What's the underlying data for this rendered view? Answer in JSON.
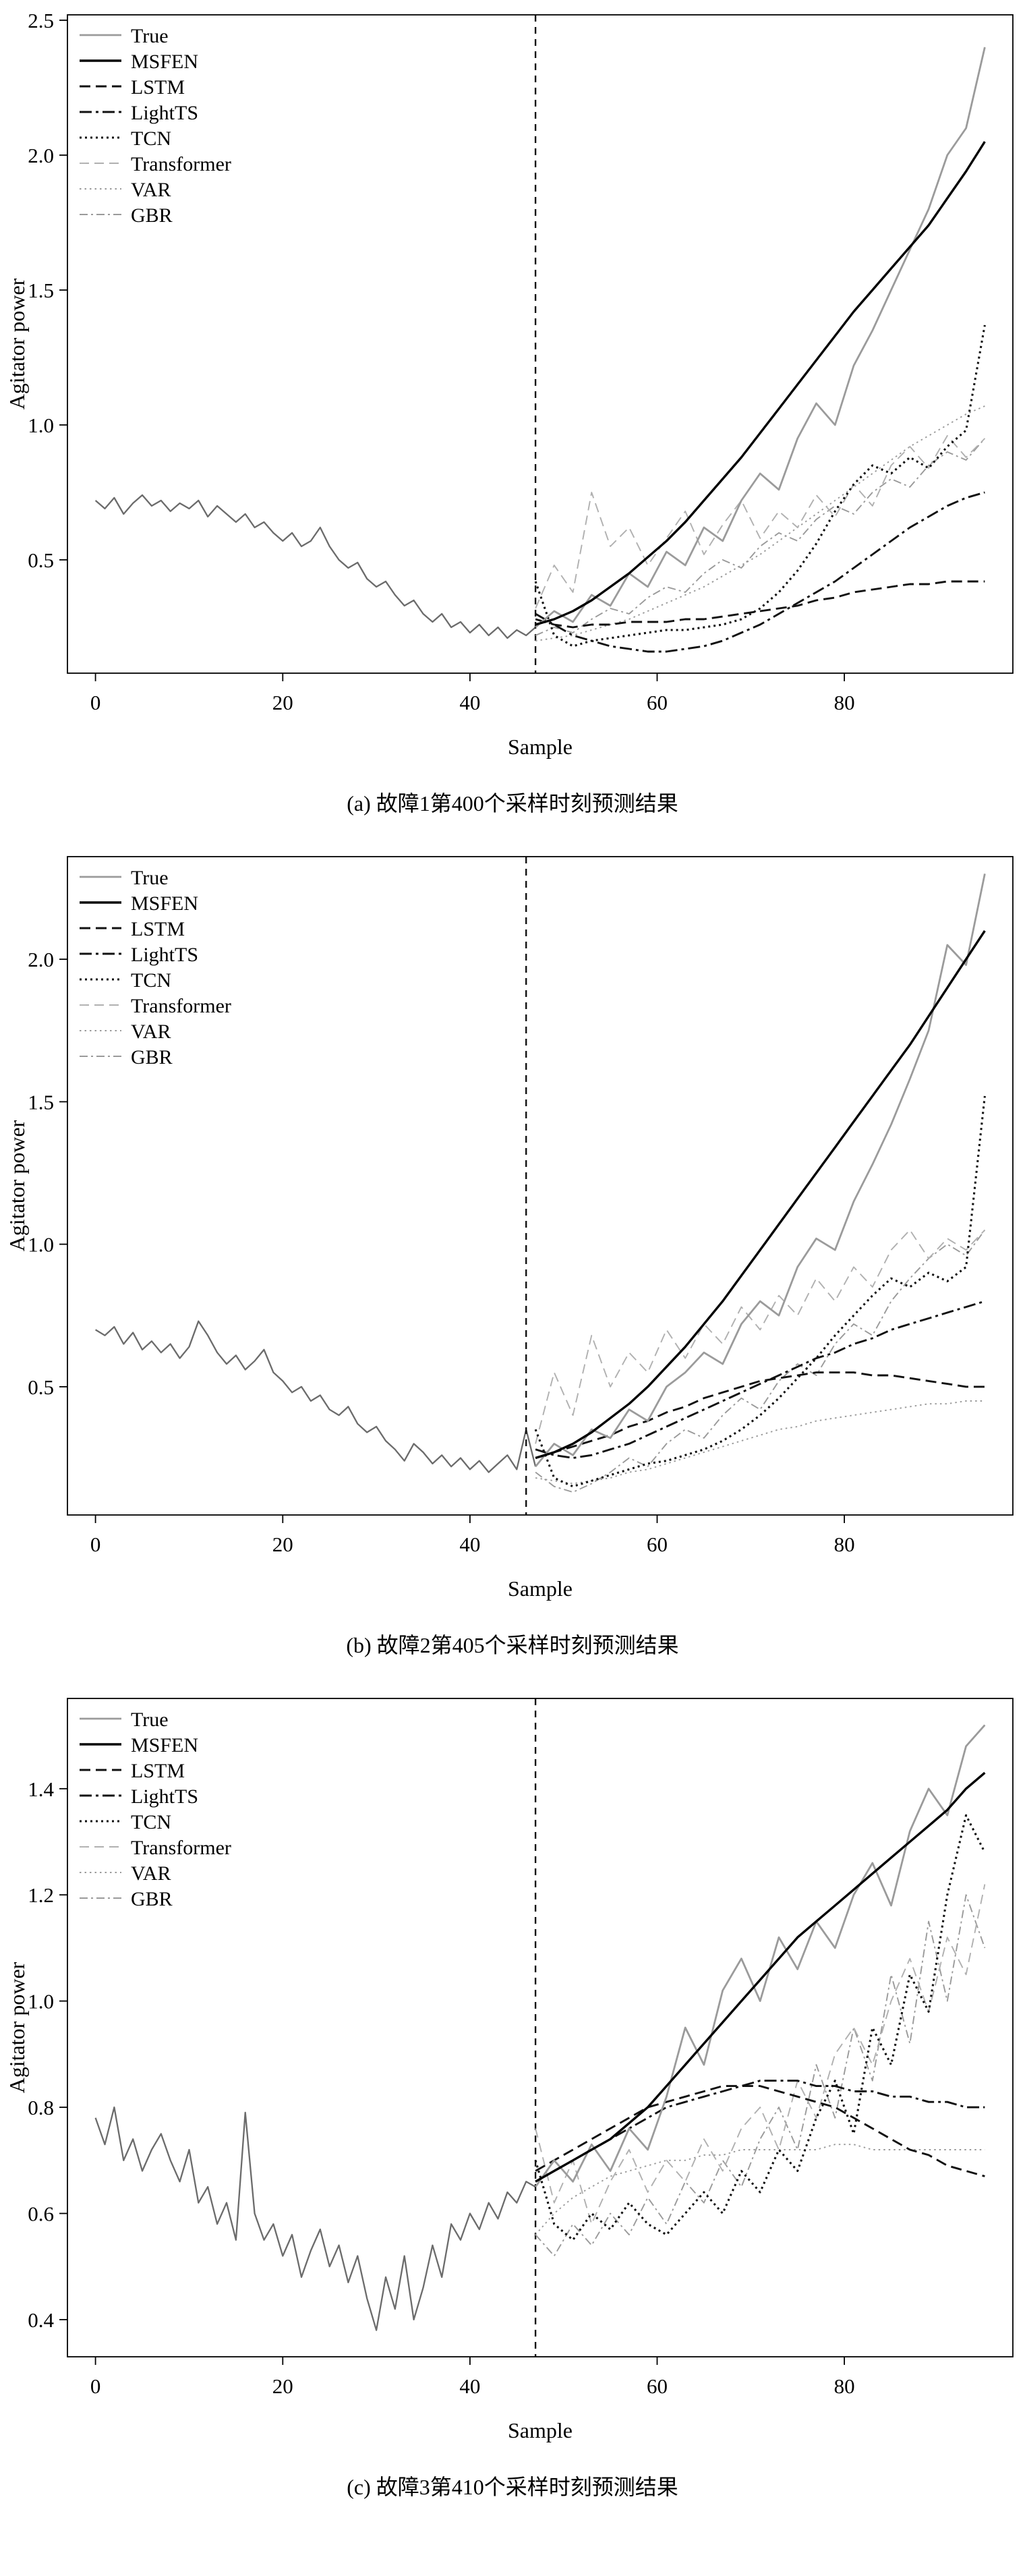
{
  "figure": {
    "background": "#ffffff",
    "axis_color": "#000000"
  },
  "chart_data": [
    {
      "id": "a",
      "type": "line",
      "caption": "(a) 故障1第400个采样时刻预测结果",
      "xlabel": "Sample",
      "ylabel": "Agitator power",
      "xlim": [
        -3,
        98
      ],
      "ylim": [
        0.08,
        2.52
      ],
      "xticks": [
        0,
        20,
        40,
        60,
        80
      ],
      "yticks": [
        0.5,
        1.0,
        1.5,
        2.0,
        2.5
      ],
      "split_x": 47,
      "legend_position": "top-left",
      "grid": false,
      "history": {
        "x0": 0,
        "step": 1,
        "color": "#6b6b6b",
        "width": 2.3,
        "values": [
          0.72,
          0.69,
          0.73,
          0.67,
          0.71,
          0.74,
          0.7,
          0.72,
          0.68,
          0.71,
          0.69,
          0.72,
          0.66,
          0.7,
          0.67,
          0.64,
          0.67,
          0.62,
          0.64,
          0.6,
          0.57,
          0.6,
          0.55,
          0.57,
          0.62,
          0.55,
          0.5,
          0.47,
          0.49,
          0.43,
          0.4,
          0.42,
          0.37,
          0.33,
          0.35,
          0.3,
          0.27,
          0.3,
          0.25,
          0.27,
          0.23,
          0.26,
          0.22,
          0.25,
          0.21,
          0.24,
          0.22,
          0.25
        ]
      },
      "series": [
        {
          "name": "True",
          "color": "#9b9b9b",
          "width": 2.8,
          "dash": "",
          "x0": 47,
          "step": 2,
          "values": [
            0.25,
            0.31,
            0.27,
            0.37,
            0.33,
            0.45,
            0.4,
            0.53,
            0.48,
            0.62,
            0.57,
            0.72,
            0.82,
            0.76,
            0.95,
            1.08,
            1.0,
            1.22,
            1.35,
            1.5,
            1.65,
            1.8,
            2.0,
            2.1,
            2.4
          ]
        },
        {
          "name": "MSFEN",
          "color": "#000000",
          "width": 3.4,
          "dash": "",
          "x0": 47,
          "step": 2,
          "values": [
            0.26,
            0.28,
            0.31,
            0.35,
            0.4,
            0.45,
            0.51,
            0.57,
            0.64,
            0.72,
            0.8,
            0.88,
            0.97,
            1.06,
            1.15,
            1.24,
            1.33,
            1.42,
            1.5,
            1.58,
            1.66,
            1.74,
            1.84,
            1.94,
            2.05
          ]
        },
        {
          "name": "LSTM",
          "color": "#111111",
          "width": 2.9,
          "dash": "16,8",
          "x0": 47,
          "step": 2,
          "values": [
            0.28,
            0.26,
            0.25,
            0.26,
            0.26,
            0.27,
            0.27,
            0.27,
            0.28,
            0.28,
            0.29,
            0.3,
            0.31,
            0.32,
            0.33,
            0.35,
            0.36,
            0.38,
            0.39,
            0.4,
            0.41,
            0.41,
            0.42,
            0.42,
            0.42
          ]
        },
        {
          "name": "LightTS",
          "color": "#111111",
          "width": 2.9,
          "dash": "18,6,4,6",
          "x0": 47,
          "step": 2,
          "values": [
            0.3,
            0.26,
            0.22,
            0.2,
            0.18,
            0.17,
            0.16,
            0.16,
            0.17,
            0.18,
            0.2,
            0.23,
            0.26,
            0.3,
            0.34,
            0.38,
            0.42,
            0.47,
            0.52,
            0.57,
            0.62,
            0.66,
            0.7,
            0.73,
            0.75
          ]
        },
        {
          "name": "TCN",
          "color": "#111111",
          "width": 3.1,
          "dash": "3,5",
          "x0": 47,
          "step": 2,
          "values": [
            0.42,
            0.22,
            0.18,
            0.2,
            0.21,
            0.22,
            0.23,
            0.24,
            0.24,
            0.25,
            0.26,
            0.28,
            0.32,
            0.38,
            0.46,
            0.56,
            0.68,
            0.78,
            0.85,
            0.82,
            0.88,
            0.84,
            0.92,
            0.98,
            1.37
          ]
        },
        {
          "name": "Transformer",
          "color": "#b0b0b0",
          "width": 1.9,
          "dash": "14,8",
          "x0": 47,
          "step": 2,
          "values": [
            0.32,
            0.48,
            0.38,
            0.75,
            0.55,
            0.62,
            0.48,
            0.58,
            0.68,
            0.52,
            0.63,
            0.72,
            0.58,
            0.68,
            0.62,
            0.74,
            0.66,
            0.78,
            0.7,
            0.85,
            0.92,
            0.84,
            0.96,
            0.88,
            0.95
          ]
        },
        {
          "name": "VAR",
          "color": "#9a9a9a",
          "width": 1.9,
          "dash": "2.5,5",
          "x0": 47,
          "step": 2,
          "values": [
            0.2,
            0.21,
            0.22,
            0.24,
            0.26,
            0.28,
            0.31,
            0.34,
            0.37,
            0.4,
            0.44,
            0.48,
            0.52,
            0.57,
            0.62,
            0.67,
            0.72,
            0.77,
            0.82,
            0.87,
            0.92,
            0.96,
            1.0,
            1.04,
            1.07
          ]
        },
        {
          "name": "GBR",
          "color": "#9a9a9a",
          "width": 1.9,
          "dash": "12,5,3,5",
          "x0": 47,
          "step": 2,
          "values": [
            0.22,
            0.25,
            0.23,
            0.28,
            0.32,
            0.3,
            0.36,
            0.4,
            0.38,
            0.45,
            0.5,
            0.47,
            0.55,
            0.6,
            0.57,
            0.65,
            0.7,
            0.67,
            0.75,
            0.8,
            0.77,
            0.85,
            0.9,
            0.87,
            0.95
          ]
        }
      ]
    },
    {
      "id": "b",
      "type": "line",
      "caption": "(b) 故障2第405个采样时刻预测结果",
      "xlabel": "Sample",
      "ylabel": "Agitator power",
      "xlim": [
        -3,
        98
      ],
      "ylim": [
        0.05,
        2.36
      ],
      "xticks": [
        0,
        20,
        40,
        60,
        80
      ],
      "yticks": [
        0.5,
        1.0,
        1.5,
        2.0
      ],
      "split_x": 46,
      "legend_position": "top-left",
      "grid": false,
      "history": {
        "x0": 0,
        "step": 1,
        "color": "#6b6b6b",
        "width": 2.3,
        "values": [
          0.7,
          0.68,
          0.71,
          0.65,
          0.69,
          0.63,
          0.66,
          0.62,
          0.65,
          0.6,
          0.64,
          0.73,
          0.68,
          0.62,
          0.58,
          0.61,
          0.56,
          0.59,
          0.63,
          0.55,
          0.52,
          0.48,
          0.5,
          0.45,
          0.47,
          0.42,
          0.4,
          0.43,
          0.37,
          0.34,
          0.36,
          0.31,
          0.28,
          0.24,
          0.3,
          0.27,
          0.23,
          0.26,
          0.22,
          0.25,
          0.21,
          0.24,
          0.2,
          0.23,
          0.26,
          0.21,
          0.35,
          0.22
        ]
      },
      "series": [
        {
          "name": "True",
          "color": "#9b9b9b",
          "width": 2.8,
          "dash": "",
          "x0": 47,
          "step": 2,
          "values": [
            0.22,
            0.3,
            0.26,
            0.35,
            0.32,
            0.42,
            0.38,
            0.5,
            0.55,
            0.62,
            0.58,
            0.72,
            0.8,
            0.75,
            0.92,
            1.02,
            0.98,
            1.15,
            1.28,
            1.42,
            1.58,
            1.75,
            2.05,
            1.98,
            2.3
          ]
        },
        {
          "name": "MSFEN",
          "color": "#000000",
          "width": 3.4,
          "dash": "",
          "x0": 47,
          "step": 2,
          "values": [
            0.25,
            0.27,
            0.3,
            0.34,
            0.39,
            0.44,
            0.5,
            0.57,
            0.64,
            0.72,
            0.8,
            0.89,
            0.98,
            1.07,
            1.16,
            1.25,
            1.34,
            1.43,
            1.52,
            1.61,
            1.7,
            1.8,
            1.9,
            2.0,
            2.1
          ]
        },
        {
          "name": "LSTM",
          "color": "#111111",
          "width": 2.9,
          "dash": "16,8",
          "x0": 47,
          "step": 2,
          "values": [
            0.25,
            0.27,
            0.29,
            0.31,
            0.33,
            0.36,
            0.38,
            0.41,
            0.43,
            0.46,
            0.48,
            0.5,
            0.52,
            0.53,
            0.54,
            0.55,
            0.55,
            0.55,
            0.54,
            0.54,
            0.53,
            0.52,
            0.51,
            0.5,
            0.5
          ]
        },
        {
          "name": "LightTS",
          "color": "#111111",
          "width": 2.9,
          "dash": "18,6,4,6",
          "x0": 47,
          "step": 2,
          "values": [
            0.28,
            0.26,
            0.25,
            0.26,
            0.28,
            0.3,
            0.33,
            0.36,
            0.39,
            0.42,
            0.45,
            0.48,
            0.51,
            0.54,
            0.57,
            0.6,
            0.62,
            0.65,
            0.67,
            0.7,
            0.72,
            0.74,
            0.76,
            0.78,
            0.8
          ]
        },
        {
          "name": "TCN",
          "color": "#111111",
          "width": 3.1,
          "dash": "3,5",
          "x0": 47,
          "step": 2,
          "values": [
            0.35,
            0.18,
            0.15,
            0.17,
            0.19,
            0.21,
            0.23,
            0.24,
            0.26,
            0.28,
            0.31,
            0.35,
            0.4,
            0.46,
            0.53,
            0.6,
            0.68,
            0.75,
            0.82,
            0.88,
            0.85,
            0.9,
            0.87,
            0.92,
            1.52
          ]
        },
        {
          "name": "Transformer",
          "color": "#b0b0b0",
          "width": 1.9,
          "dash": "14,8",
          "x0": 47,
          "step": 2,
          "values": [
            0.3,
            0.55,
            0.4,
            0.68,
            0.5,
            0.62,
            0.55,
            0.7,
            0.6,
            0.72,
            0.65,
            0.78,
            0.7,
            0.82,
            0.75,
            0.88,
            0.8,
            0.92,
            0.85,
            0.98,
            1.05,
            0.95,
            1.02,
            0.98,
            1.05
          ]
        },
        {
          "name": "VAR",
          "color": "#9a9a9a",
          "width": 1.9,
          "dash": "2.5,5",
          "x0": 47,
          "step": 2,
          "values": [
            0.18,
            0.17,
            0.16,
            0.17,
            0.18,
            0.2,
            0.21,
            0.23,
            0.25,
            0.27,
            0.29,
            0.31,
            0.33,
            0.35,
            0.36,
            0.38,
            0.39,
            0.4,
            0.41,
            0.42,
            0.43,
            0.44,
            0.44,
            0.45,
            0.45
          ]
        },
        {
          "name": "GBR",
          "color": "#9a9a9a",
          "width": 1.9,
          "dash": "12,5,3,5",
          "x0": 47,
          "step": 2,
          "values": [
            0.2,
            0.15,
            0.13,
            0.16,
            0.2,
            0.25,
            0.22,
            0.3,
            0.35,
            0.32,
            0.4,
            0.46,
            0.42,
            0.52,
            0.58,
            0.54,
            0.65,
            0.72,
            0.68,
            0.8,
            0.88,
            0.95,
            1.0,
            0.96,
            1.05
          ]
        }
      ]
    },
    {
      "id": "c",
      "type": "line",
      "caption": "(c) 故障3第410个采样时刻预测结果",
      "xlabel": "Sample",
      "ylabel": "Agitator power",
      "xlim": [
        -3,
        98
      ],
      "ylim": [
        0.33,
        1.57
      ],
      "xticks": [
        0,
        20,
        40,
        60,
        80
      ],
      "yticks": [
        0.4,
        0.6,
        0.8,
        1.0,
        1.2,
        1.4
      ],
      "split_x": 47,
      "legend_position": "top-left",
      "grid": false,
      "history": {
        "x0": 0,
        "step": 1,
        "color": "#6b6b6b",
        "width": 2.3,
        "values": [
          0.78,
          0.73,
          0.8,
          0.7,
          0.74,
          0.68,
          0.72,
          0.75,
          0.7,
          0.66,
          0.72,
          0.62,
          0.65,
          0.58,
          0.62,
          0.55,
          0.79,
          0.6,
          0.55,
          0.58,
          0.52,
          0.56,
          0.48,
          0.53,
          0.57,
          0.5,
          0.54,
          0.47,
          0.52,
          0.44,
          0.38,
          0.48,
          0.42,
          0.52,
          0.4,
          0.46,
          0.54,
          0.48,
          0.58,
          0.55,
          0.6,
          0.57,
          0.62,
          0.59,
          0.64,
          0.62,
          0.66,
          0.65
        ]
      },
      "series": [
        {
          "name": "True",
          "color": "#9b9b9b",
          "width": 2.8,
          "dash": "",
          "x0": 47,
          "step": 2,
          "values": [
            0.65,
            0.7,
            0.66,
            0.73,
            0.68,
            0.76,
            0.72,
            0.82,
            0.95,
            0.88,
            1.02,
            1.08,
            1.0,
            1.12,
            1.06,
            1.15,
            1.1,
            1.2,
            1.26,
            1.18,
            1.32,
            1.4,
            1.35,
            1.48,
            1.52
          ]
        },
        {
          "name": "MSFEN",
          "color": "#000000",
          "width": 3.4,
          "dash": "",
          "x0": 47,
          "step": 2,
          "values": [
            0.66,
            0.68,
            0.7,
            0.72,
            0.74,
            0.77,
            0.8,
            0.84,
            0.88,
            0.92,
            0.96,
            1.0,
            1.04,
            1.08,
            1.12,
            1.15,
            1.18,
            1.21,
            1.24,
            1.27,
            1.3,
            1.33,
            1.36,
            1.4,
            1.43
          ]
        },
        {
          "name": "LSTM",
          "color": "#111111",
          "width": 2.9,
          "dash": "16,8",
          "x0": 47,
          "step": 2,
          "values": [
            0.68,
            0.7,
            0.72,
            0.74,
            0.76,
            0.78,
            0.8,
            0.81,
            0.82,
            0.83,
            0.84,
            0.84,
            0.84,
            0.83,
            0.82,
            0.81,
            0.8,
            0.78,
            0.76,
            0.74,
            0.72,
            0.71,
            0.69,
            0.68,
            0.67
          ]
        },
        {
          "name": "LightTS",
          "color": "#111111",
          "width": 2.9,
          "dash": "18,6,4,6",
          "x0": 47,
          "step": 2,
          "values": [
            0.66,
            0.68,
            0.7,
            0.72,
            0.74,
            0.76,
            0.78,
            0.8,
            0.81,
            0.82,
            0.83,
            0.84,
            0.85,
            0.85,
            0.85,
            0.84,
            0.84,
            0.83,
            0.83,
            0.82,
            0.82,
            0.81,
            0.81,
            0.8,
            0.8
          ]
        },
        {
          "name": "TCN",
          "color": "#111111",
          "width": 3.1,
          "dash": "3,5",
          "x0": 47,
          "step": 2,
          "values": [
            0.7,
            0.58,
            0.55,
            0.6,
            0.57,
            0.62,
            0.58,
            0.56,
            0.6,
            0.64,
            0.6,
            0.68,
            0.64,
            0.72,
            0.68,
            0.78,
            0.85,
            0.75,
            0.95,
            0.88,
            1.05,
            0.98,
            1.2,
            1.35,
            1.28
          ]
        },
        {
          "name": "Transformer",
          "color": "#b0b0b0",
          "width": 1.9,
          "dash": "14,8",
          "x0": 47,
          "step": 2,
          "values": [
            0.76,
            0.62,
            0.7,
            0.58,
            0.66,
            0.72,
            0.64,
            0.7,
            0.66,
            0.74,
            0.68,
            0.76,
            0.8,
            0.72,
            0.85,
            0.78,
            0.9,
            0.95,
            0.88,
            1.0,
            1.08,
            0.98,
            1.12,
            1.05,
            1.22
          ]
        },
        {
          "name": "VAR",
          "color": "#9a9a9a",
          "width": 1.9,
          "dash": "2.5,5",
          "x0": 47,
          "step": 2,
          "values": [
            0.56,
            0.6,
            0.63,
            0.65,
            0.67,
            0.68,
            0.69,
            0.7,
            0.7,
            0.71,
            0.71,
            0.72,
            0.72,
            0.72,
            0.72,
            0.72,
            0.73,
            0.73,
            0.72,
            0.72,
            0.72,
            0.72,
            0.72,
            0.72,
            0.72
          ]
        },
        {
          "name": "GBR",
          "color": "#9a9a9a",
          "width": 1.9,
          "dash": "12,5,3,5",
          "x0": 47,
          "step": 2,
          "values": [
            0.56,
            0.52,
            0.58,
            0.54,
            0.6,
            0.56,
            0.63,
            0.58,
            0.66,
            0.62,
            0.7,
            0.65,
            0.74,
            0.8,
            0.72,
            0.88,
            0.78,
            0.95,
            0.85,
            1.05,
            0.92,
            1.15,
            1.0,
            1.2,
            1.1
          ]
        }
      ]
    }
  ]
}
